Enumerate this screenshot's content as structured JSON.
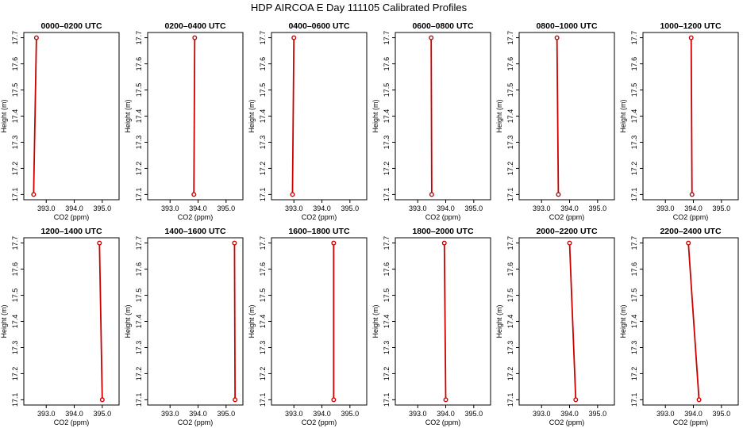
{
  "figure_title": "HDP AIRCOA E  Day 111105  Calibrated Profiles",
  "colors": {
    "profile_line": "#cc0000",
    "marker": "#cc0000",
    "frame": "#000000"
  },
  "chart_data": [
    {
      "type": "line",
      "title": "0000–0200 UTC",
      "xlabel": "CO2 (ppm)",
      "ylabel": "Height (m)",
      "xlim": [
        392.2,
        395.6
      ],
      "ylim": [
        17.08,
        17.72
      ],
      "xticks": [
        "393.0",
        "394.0",
        "395.0"
      ],
      "yticks": [
        "17.1",
        "17.2",
        "17.3",
        "17.4",
        "17.5",
        "17.6",
        "17.7"
      ],
      "points": [
        {
          "co2": 392.55,
          "height": 17.1
        },
        {
          "co2": 392.65,
          "height": 17.7
        }
      ]
    },
    {
      "type": "line",
      "title": "0200–0400 UTC",
      "xlabel": "CO2 (ppm)",
      "ylabel": "Height (m)",
      "xlim": [
        392.2,
        395.6
      ],
      "ylim": [
        17.08,
        17.72
      ],
      "xticks": [
        "393.0",
        "394.0",
        "395.0"
      ],
      "yticks": [
        "17.1",
        "17.2",
        "17.3",
        "17.4",
        "17.5",
        "17.6",
        "17.7"
      ],
      "points": [
        {
          "co2": 393.85,
          "height": 17.1
        },
        {
          "co2": 393.88,
          "height": 17.7
        }
      ]
    },
    {
      "type": "line",
      "title": "0400–0600 UTC",
      "xlabel": "CO2 (ppm)",
      "ylabel": "Height (m)",
      "xlim": [
        392.2,
        395.6
      ],
      "ylim": [
        17.08,
        17.72
      ],
      "xticks": [
        "393.0",
        "394.0",
        "395.0"
      ],
      "yticks": [
        "17.1",
        "17.2",
        "17.3",
        "17.4",
        "17.5",
        "17.6",
        "17.7"
      ],
      "points": [
        {
          "co2": 392.95,
          "height": 17.1
        },
        {
          "co2": 393.0,
          "height": 17.7
        }
      ]
    },
    {
      "type": "line",
      "title": "0600–0800 UTC",
      "xlabel": "CO2 (ppm)",
      "ylabel": "Height (m)",
      "xlim": [
        392.2,
        395.6
      ],
      "ylim": [
        17.08,
        17.72
      ],
      "xticks": [
        "393.0",
        "394.0",
        "395.0"
      ],
      "yticks": [
        "17.1",
        "17.2",
        "17.3",
        "17.4",
        "17.5",
        "17.6",
        "17.7"
      ],
      "points": [
        {
          "co2": 393.5,
          "height": 17.1
        },
        {
          "co2": 393.48,
          "height": 17.7
        }
      ]
    },
    {
      "type": "line",
      "title": "0800–1000 UTC",
      "xlabel": "CO2 (ppm)",
      "ylabel": "Height (m)",
      "xlim": [
        392.2,
        395.6
      ],
      "ylim": [
        17.08,
        17.72
      ],
      "xticks": [
        "393.0",
        "394.0",
        "395.0"
      ],
      "yticks": [
        "17.1",
        "17.2",
        "17.3",
        "17.4",
        "17.5",
        "17.6",
        "17.7"
      ],
      "points": [
        {
          "co2": 393.6,
          "height": 17.1
        },
        {
          "co2": 393.55,
          "height": 17.7
        }
      ]
    },
    {
      "type": "line",
      "title": "1000–1200 UTC",
      "xlabel": "CO2 (ppm)",
      "ylabel": "Height (m)",
      "xlim": [
        392.2,
        395.6
      ],
      "ylim": [
        17.08,
        17.72
      ],
      "xticks": [
        "393.0",
        "394.0",
        "395.0"
      ],
      "yticks": [
        "17.1",
        "17.2",
        "17.3",
        "17.4",
        "17.5",
        "17.6",
        "17.7"
      ],
      "points": [
        {
          "co2": 393.95,
          "height": 17.1
        },
        {
          "co2": 393.92,
          "height": 17.7
        }
      ]
    },
    {
      "type": "line",
      "title": "1200–1400 UTC",
      "xlabel": "CO2 (ppm)",
      "ylabel": "Height (m)",
      "xlim": [
        392.2,
        395.6
      ],
      "ylim": [
        17.08,
        17.72
      ],
      "xticks": [
        "393.0",
        "394.0",
        "395.0"
      ],
      "yticks": [
        "17.1",
        "17.2",
        "17.3",
        "17.4",
        "17.5",
        "17.6",
        "17.7"
      ],
      "points": [
        {
          "co2": 395.0,
          "height": 17.1
        },
        {
          "co2": 394.9,
          "height": 17.7
        }
      ]
    },
    {
      "type": "line",
      "title": "1400–1600 UTC",
      "xlabel": "CO2 (ppm)",
      "ylabel": "Height (m)",
      "xlim": [
        392.2,
        395.6
      ],
      "ylim": [
        17.08,
        17.72
      ],
      "xticks": [
        "393.0",
        "394.0",
        "395.0"
      ],
      "yticks": [
        "17.1",
        "17.2",
        "17.3",
        "17.4",
        "17.5",
        "17.6",
        "17.7"
      ],
      "points": [
        {
          "co2": 395.32,
          "height": 17.1
        },
        {
          "co2": 395.3,
          "height": 17.7
        }
      ]
    },
    {
      "type": "line",
      "title": "1600–1800 UTC",
      "xlabel": "CO2 (ppm)",
      "ylabel": "Height (m)",
      "xlim": [
        392.2,
        395.6
      ],
      "ylim": [
        17.08,
        17.72
      ],
      "xticks": [
        "393.0",
        "394.0",
        "395.0"
      ],
      "yticks": [
        "17.1",
        "17.2",
        "17.3",
        "17.4",
        "17.5",
        "17.6",
        "17.7"
      ],
      "points": [
        {
          "co2": 394.42,
          "height": 17.1
        },
        {
          "co2": 394.42,
          "height": 17.7
        }
      ]
    },
    {
      "type": "line",
      "title": "1800–2000 UTC",
      "xlabel": "CO2 (ppm)",
      "ylabel": "Height (m)",
      "xlim": [
        392.2,
        395.6
      ],
      "ylim": [
        17.08,
        17.72
      ],
      "xticks": [
        "393.0",
        "394.0",
        "395.0"
      ],
      "yticks": [
        "17.1",
        "17.2",
        "17.3",
        "17.4",
        "17.5",
        "17.6",
        "17.7"
      ],
      "points": [
        {
          "co2": 394.0,
          "height": 17.1
        },
        {
          "co2": 393.95,
          "height": 17.7
        }
      ]
    },
    {
      "type": "line",
      "title": "2000–2200 UTC",
      "xlabel": "CO2 (ppm)",
      "ylabel": "Height (m)",
      "xlim": [
        392.2,
        395.6
      ],
      "ylim": [
        17.08,
        17.72
      ],
      "xticks": [
        "393.0",
        "394.0",
        "395.0"
      ],
      "yticks": [
        "17.1",
        "17.2",
        "17.3",
        "17.4",
        "17.5",
        "17.6",
        "17.7"
      ],
      "points": [
        {
          "co2": 394.22,
          "height": 17.1
        },
        {
          "co2": 394.0,
          "height": 17.7
        }
      ]
    },
    {
      "type": "line",
      "title": "2200–2400 UTC",
      "xlabel": "CO2 (ppm)",
      "ylabel": "Height (m)",
      "xlim": [
        392.2,
        395.6
      ],
      "ylim": [
        17.08,
        17.72
      ],
      "xticks": [
        "393.0",
        "394.0",
        "395.0"
      ],
      "yticks": [
        "17.1",
        "17.2",
        "17.3",
        "17.4",
        "17.5",
        "17.6",
        "17.7"
      ],
      "points": [
        {
          "co2": 394.2,
          "height": 17.1
        },
        {
          "co2": 393.82,
          "height": 17.7
        }
      ]
    }
  ]
}
